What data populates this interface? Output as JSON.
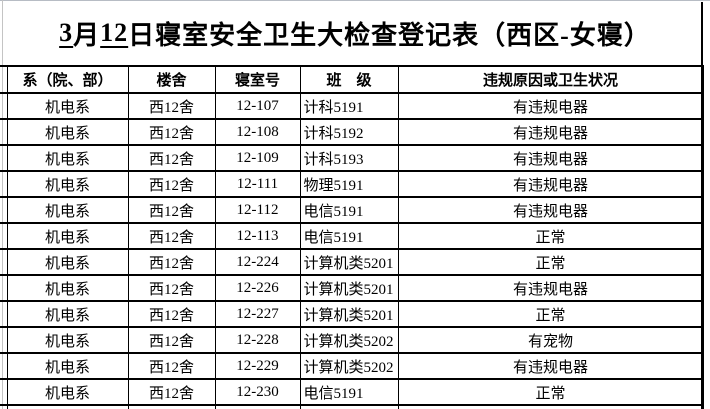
{
  "page": {
    "title": {
      "full_text": "3月12日寝室安全卫生大检查登记表（西区-女寝）",
      "segments": [
        {
          "text": "3",
          "underline": true
        },
        {
          "text": "月",
          "underline": false
        },
        {
          "text": "12",
          "underline": true
        },
        {
          "text": "日寝室安全卫生大检查登记表（西区-女寝）",
          "underline": false
        }
      ]
    }
  },
  "table": {
    "headers": [
      "系（院、部）",
      "楼舍",
      "寝室号",
      "班　级",
      "违规原因或卫生状况"
    ],
    "column_alignments": [
      "center",
      "center",
      "center",
      "left",
      "center"
    ],
    "rows": [
      [
        "机电系",
        "西12舍",
        "12-107",
        "计科5191",
        "有违规电器"
      ],
      [
        "机电系",
        "西12舍",
        "12-108",
        "计科5192",
        "有违规电器"
      ],
      [
        "机电系",
        "西12舍",
        "12-109",
        "计科5193",
        "有违规电器"
      ],
      [
        "机电系",
        "西12舍",
        "12-111",
        "物理5191",
        "有违规电器"
      ],
      [
        "机电系",
        "西12舍",
        "12-112",
        "电信5191",
        "有违规电器"
      ],
      [
        "机电系",
        "西12舍",
        "12-113",
        "电信5191",
        "正常"
      ],
      [
        "机电系",
        "西12舍",
        "12-224",
        "计算机类5201",
        "正常"
      ],
      [
        "机电系",
        "西12舍",
        "12-226",
        "计算机类5201",
        "有违规电器"
      ],
      [
        "机电系",
        "西12舍",
        "12-227",
        "计算机类5201",
        "正常"
      ],
      [
        "机电系",
        "西12舍",
        "12-228",
        "计算机类5202",
        "有宠物"
      ],
      [
        "机电系",
        "西12舍",
        "12-229",
        "计算机类5202",
        "有违规电器"
      ],
      [
        "机电系",
        "西12舍",
        "12-230",
        "电信5191",
        "正常"
      ]
    ],
    "partial_row_visible": true
  },
  "colors": {
    "border": "#000000",
    "edge_gray": "#c4c4c4",
    "top_edge_gray": "#b7bcc4",
    "text": "#000000",
    "background": "#ffffff"
  }
}
